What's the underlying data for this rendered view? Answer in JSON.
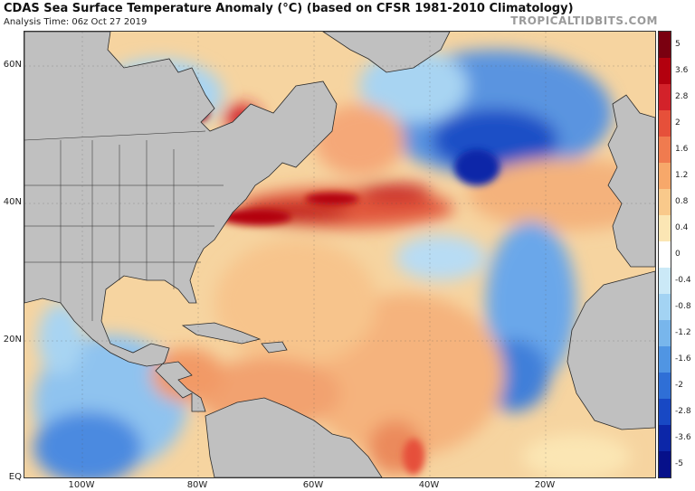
{
  "header": {
    "title": "CDAS Sea Surface Temperature Anomaly (°C) (based on CFSR 1981-2010 Climatology)",
    "subtitle": "Analysis Time: 06z Oct 27 2019",
    "brand": "TROPICALTIDBITS.COM"
  },
  "map": {
    "lat_labels": [
      "60N",
      "40N",
      "20N",
      "EQ"
    ],
    "lon_labels": [
      "100W",
      "80W",
      "60W",
      "40W",
      "20W"
    ],
    "land_color": "#c0c0c0",
    "ocean_base_color": "#f6d6a0"
  },
  "colorbar": {
    "labels": [
      "5",
      "3.6",
      "2.8",
      "2",
      "1.6",
      "1.2",
      "0.8",
      "0.4",
      "0",
      "-0.4",
      "-0.8",
      "-1.2",
      "-1.6",
      "-2",
      "-2.8",
      "-3.6",
      "-5"
    ],
    "colors": [
      "#7a0010",
      "#b3000e",
      "#d3222a",
      "#e6503a",
      "#f07b4f",
      "#f7a86a",
      "#f9c98b",
      "#fbe6b4",
      "#ffffff",
      "#cbe9f7",
      "#a3d3f3",
      "#78b6ec",
      "#5095e3",
      "#2f6fd6",
      "#1848c4",
      "#0c26a8",
      "#06108a"
    ]
  }
}
